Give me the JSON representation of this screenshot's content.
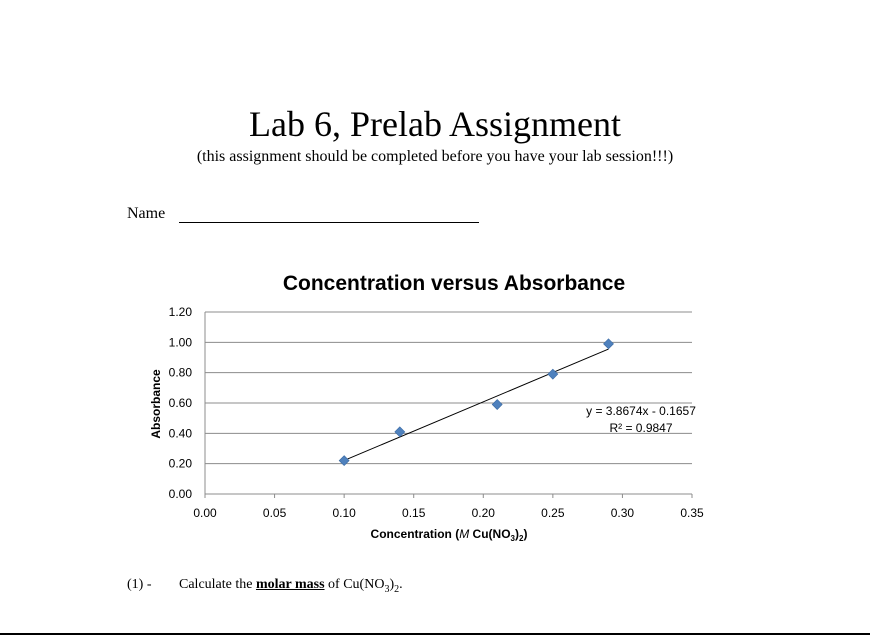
{
  "document": {
    "title": "Lab 6, Prelab Assignment",
    "subtitle": "(this assignment should be completed before you have your lab session!!!)",
    "name_label": "Name",
    "question": {
      "number": "(1) -",
      "text_before": "Calculate the",
      "bold_text": "molar mass",
      "text_after": "of Cu(NO",
      "subscript": "3",
      "text_end": ")",
      "subscript2": "2",
      "period": "."
    }
  },
  "chart_data": {
    "type": "scatter",
    "title": "Concentration versus Absorbance",
    "xlabel_prefix": "Concentration (",
    "xlabel_italic": "M",
    "xlabel_mid": " Cu(NO",
    "xlabel_sub1": "3",
    "xlabel_close": ")",
    "xlabel_sub2": "2",
    "xlabel_end": ")",
    "ylabel": "Absorbance",
    "xlim": [
      0,
      0.35
    ],
    "ylim": [
      0,
      1.2
    ],
    "x_ticks": [
      "0.00",
      "0.05",
      "0.10",
      "0.15",
      "0.20",
      "0.25",
      "0.30",
      "0.35"
    ],
    "y_ticks": [
      "0.00",
      "0.20",
      "0.40",
      "0.60",
      "0.80",
      "1.00",
      "1.20"
    ],
    "grid": true,
    "marker_color": "#4f81bd",
    "series": [
      {
        "x": [
          0.1,
          0.14,
          0.21,
          0.25,
          0.29
        ],
        "y": [
          0.22,
          0.41,
          0.59,
          0.79,
          0.99
        ]
      }
    ],
    "trendline": {
      "slope": 3.8674,
      "intercept": -0.1657,
      "x_range": [
        0.1,
        0.29
      ],
      "equation": "y = 3.8674x - 0.1657",
      "r_squared": "R² = 0.9847"
    }
  }
}
